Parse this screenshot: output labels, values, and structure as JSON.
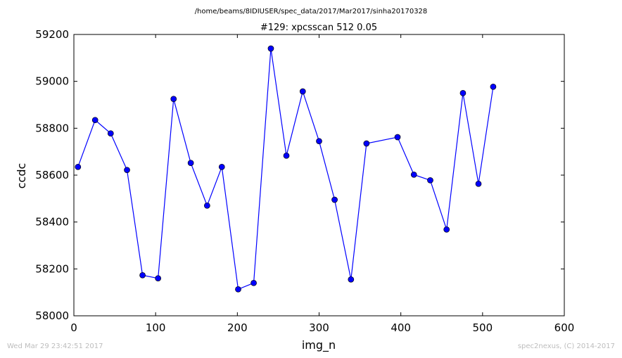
{
  "chart_data": {
    "type": "line",
    "suptitle": "/home/beams/8IDIUSER/spec_data/2017/Mar2017/sinha20170328",
    "title": "#129: xpcsscan 512 0.05",
    "xlabel": "img_n",
    "ylabel": "ccdc",
    "xlim": [
      0,
      600
    ],
    "ylim": [
      58000,
      59200
    ],
    "xticks": [
      0,
      100,
      200,
      300,
      400,
      500,
      600
    ],
    "yticks": [
      58000,
      58200,
      58400,
      58600,
      58800,
      59000,
      59200
    ],
    "grid": false,
    "legend": "none",
    "line_color": "#0000ff",
    "marker_fill": "#0000ff",
    "marker_edge": "#000000",
    "series": [
      {
        "x": [
          5,
          26,
          45,
          65,
          84,
          103,
          122,
          143,
          163,
          181,
          201,
          220,
          241,
          260,
          280,
          300,
          319,
          339,
          358,
          396,
          416,
          436,
          456,
          476,
          495,
          513
        ],
        "y": [
          58635,
          58835,
          58778,
          58622,
          58173,
          58160,
          58925,
          58652,
          58470,
          58635,
          58113,
          58140,
          59140,
          58683,
          58957,
          58745,
          58495,
          58155,
          58735,
          58762,
          58602,
          58578,
          58368,
          58950,
          58563,
          58977
        ]
      }
    ]
  },
  "footer": {
    "left": "Wed Mar 29 23:42:51 2017",
    "right": "spec2nexus, (C) 2014-2017"
  }
}
